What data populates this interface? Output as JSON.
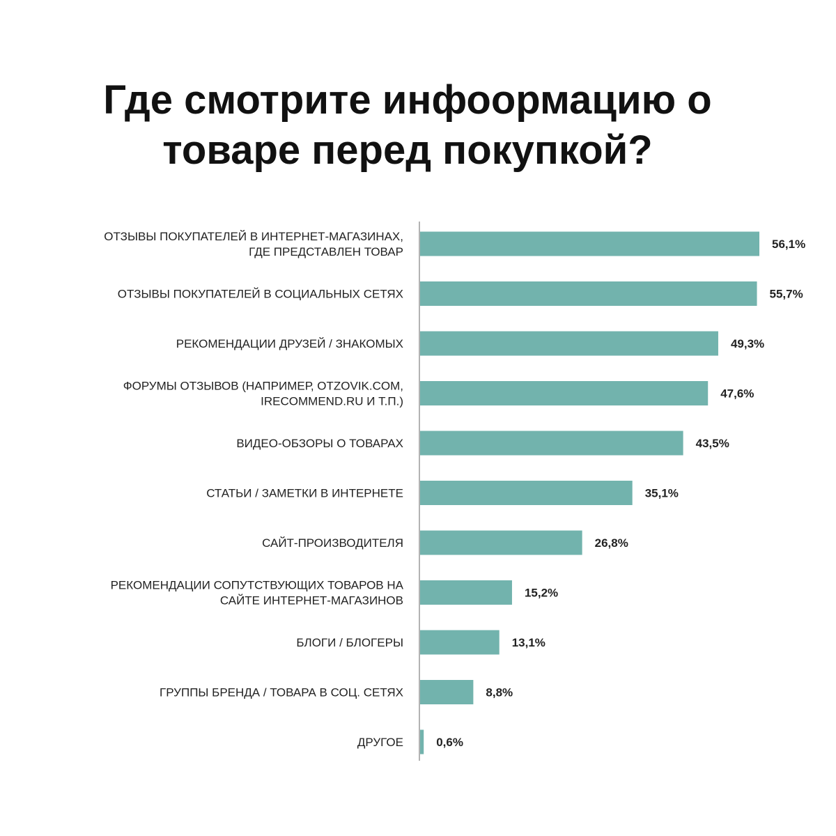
{
  "chart_data": {
    "type": "bar",
    "orientation": "horizontal",
    "title": "Где смотрите инфоормацию о товаре перед покупкой?",
    "categories": [
      [
        "ОТЗЫВЫ ПОКУПАТЕЛЕЙ В ИНТЕРНЕТ-МАГАЗИНАХ,",
        "ГДЕ ПРЕДСТАВЛЕН ТОВАР"
      ],
      [
        "ОТЗЫВЫ ПОКУПАТЕЛЕЙ В СОЦИАЛЬНЫХ СЕТЯХ"
      ],
      [
        "РЕКОМЕНДАЦИИ ДРУЗЕЙ / ЗНАКОМЫХ"
      ],
      [
        "ФОРУМЫ ОТЗЫВОВ (НАПРИМЕР, OTZOVIK.COM,",
        "IRECOMMEND.RU И Т.П.)"
      ],
      [
        "ВИДЕО-ОБЗОРЫ О ТОВАРАХ"
      ],
      [
        "СТАТЬИ / ЗАМЕТКИ В ИНТЕРНЕТЕ"
      ],
      [
        "САЙТ-ПРОИЗВОДИТЕЛЯ"
      ],
      [
        "РЕКОМЕНДАЦИИ СОПУТСТВУЮЩИХ ТОВАРОВ НА",
        "САЙТЕ ИНТЕРНЕТ-МАГАЗИНОВ"
      ],
      [
        "БЛОГИ / БЛОГЕРЫ"
      ],
      [
        "ГРУППЫ БРЕНДА / ТОВАРА В СОЦ. СЕТЯХ"
      ],
      [
        "ДРУГОЕ"
      ]
    ],
    "values": [
      56.1,
      55.7,
      49.3,
      47.6,
      43.5,
      35.1,
      26.8,
      15.2,
      13.1,
      8.8,
      0.6
    ],
    "value_labels": [
      "56,1%",
      "55,7%",
      "49,3%",
      "47,6%",
      "43,5%",
      "35,1%",
      "26,8%",
      "15,2%",
      "13,1%",
      "8,8%",
      "0,6%"
    ],
    "xlim": [
      0,
      56.1
    ],
    "bar_color": "#72b3ad",
    "axis_color": "#9a9a9a",
    "grid": false,
    "legend": "none"
  }
}
